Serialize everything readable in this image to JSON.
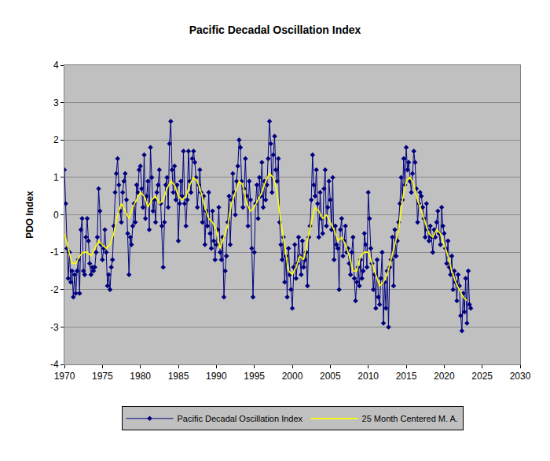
{
  "chart_data": {
    "type": "line",
    "title": "Pacific Decadal Oscillation Index",
    "y_label": "PDO Index",
    "xlim": [
      1970,
      2030
    ],
    "xticks": [
      1970,
      1975,
      1980,
      1985,
      1990,
      1995,
      2000,
      2005,
      2010,
      2015,
      2020,
      2025,
      2030
    ],
    "ylim": [
      -4,
      4
    ],
    "yticks": [
      -4,
      -3,
      -2,
      -1,
      0,
      1,
      2,
      3,
      4
    ],
    "grid": true,
    "legend": "bottom",
    "series": [
      {
        "name": "Pacific Decadal Oscillation Index",
        "color": "#000080",
        "marker": "diamond",
        "line_style": "solid",
        "x": [
          1970,
          1970.17,
          1970.33,
          1970.5,
          1970.67,
          1970.83,
          1971,
          1971.17,
          1971.33,
          1971.5,
          1971.67,
          1971.83,
          1972,
          1972.17,
          1972.33,
          1972.5,
          1972.67,
          1972.83,
          1973,
          1973.17,
          1973.33,
          1973.5,
          1973.67,
          1973.83,
          1974,
          1974.17,
          1974.33,
          1974.5,
          1974.67,
          1974.83,
          1975,
          1975.17,
          1975.33,
          1975.5,
          1975.67,
          1975.83,
          1976,
          1976.17,
          1976.33,
          1976.5,
          1976.67,
          1976.83,
          1977,
          1977.17,
          1977.33,
          1977.5,
          1977.67,
          1977.83,
          1978,
          1978.17,
          1978.33,
          1978.5,
          1978.67,
          1978.83,
          1979,
          1979.17,
          1979.33,
          1979.5,
          1979.67,
          1979.83,
          1980,
          1980.17,
          1980.33,
          1980.5,
          1980.67,
          1980.83,
          1981,
          1981.17,
          1981.33,
          1981.5,
          1981.67,
          1981.83,
          1982,
          1982.17,
          1982.33,
          1982.5,
          1982.67,
          1982.83,
          1983,
          1983.17,
          1983.33,
          1983.5,
          1983.67,
          1983.83,
          1984,
          1984.17,
          1984.33,
          1984.5,
          1984.67,
          1984.83,
          1985,
          1985.17,
          1985.33,
          1985.5,
          1985.67,
          1985.83,
          1986,
          1986.17,
          1986.33,
          1986.5,
          1986.67,
          1986.83,
          1987,
          1987.17,
          1987.33,
          1987.5,
          1987.67,
          1987.83,
          1988,
          1988.17,
          1988.33,
          1988.5,
          1988.67,
          1988.83,
          1989,
          1989.17,
          1989.33,
          1989.5,
          1989.67,
          1989.83,
          1990,
          1990.17,
          1990.33,
          1990.5,
          1990.67,
          1990.83,
          1991,
          1991.17,
          1991.33,
          1991.5,
          1991.67,
          1991.83,
          1992,
          1992.17,
          1992.33,
          1992.5,
          1992.67,
          1992.83,
          1993,
          1993.17,
          1993.33,
          1993.5,
          1993.67,
          1993.83,
          1994,
          1994.17,
          1994.33,
          1994.5,
          1994.67,
          1994.83,
          1995,
          1995.17,
          1995.33,
          1995.5,
          1995.67,
          1995.83,
          1996,
          1996.17,
          1996.33,
          1996.5,
          1996.67,
          1996.83,
          1997,
          1997.17,
          1997.33,
          1997.5,
          1997.67,
          1997.83,
          1998,
          1998.17,
          1998.33,
          1998.5,
          1998.67,
          1998.83,
          1999,
          1999.17,
          1999.33,
          1999.5,
          1999.67,
          1999.83,
          2000,
          2000.17,
          2000.33,
          2000.5,
          2000.67,
          2000.83,
          2001,
          2001.17,
          2001.33,
          2001.5,
          2001.67,
          2001.83,
          2002,
          2002.17,
          2002.33,
          2002.5,
          2002.67,
          2002.83,
          2003,
          2003.17,
          2003.33,
          2003.5,
          2003.67,
          2003.83,
          2004,
          2004.17,
          2004.33,
          2004.5,
          2004.67,
          2004.83,
          2005,
          2005.17,
          2005.33,
          2005.5,
          2005.67,
          2005.83,
          2006,
          2006.17,
          2006.33,
          2006.5,
          2006.67,
          2006.83,
          2007,
          2007.17,
          2007.33,
          2007.5,
          2007.67,
          2007.83,
          2008,
          2008.17,
          2008.33,
          2008.5,
          2008.67,
          2008.83,
          2009,
          2009.17,
          2009.33,
          2009.5,
          2009.67,
          2009.83,
          2010,
          2010.17,
          2010.33,
          2010.5,
          2010.67,
          2010.83,
          2011,
          2011.17,
          2011.33,
          2011.5,
          2011.67,
          2011.83,
          2012,
          2012.17,
          2012.33,
          2012.5,
          2012.67,
          2012.83,
          2013,
          2013.17,
          2013.33,
          2013.5,
          2013.67,
          2013.83,
          2014,
          2014.17,
          2014.33,
          2014.5,
          2014.67,
          2014.83,
          2015,
          2015.17,
          2015.33,
          2015.5,
          2015.67,
          2015.83,
          2016,
          2016.17,
          2016.33,
          2016.5,
          2016.67,
          2016.83,
          2017,
          2017.17,
          2017.33,
          2017.5,
          2017.67,
          2017.83,
          2018,
          2018.17,
          2018.33,
          2018.5,
          2018.67,
          2018.83,
          2019,
          2019.17,
          2019.33,
          2019.5,
          2019.67,
          2019.83,
          2020,
          2020.17,
          2020.33,
          2020.5,
          2020.67,
          2020.83,
          2021,
          2021.17,
          2021.33,
          2021.5,
          2021.67,
          2021.83,
          2022,
          2022.17,
          2022.33,
          2022.5,
          2022.67,
          2022.83,
          2023,
          2023.17,
          2023.33,
          2023.5
        ],
        "values": [
          1.2,
          0.3,
          -0.9,
          -1.7,
          -1.0,
          -1.8,
          -1.5,
          -2.2,
          -1.6,
          -2.1,
          -1.5,
          -1.2,
          -2.1,
          -0.4,
          -0.1,
          -1.5,
          -1.6,
          -0.6,
          -0.1,
          -0.7,
          -1.3,
          -1.6,
          -1.4,
          -1.5,
          -1.4,
          -1.0,
          -0.6,
          0.7,
          0.1,
          -0.8,
          -1.2,
          -0.9,
          -0.4,
          -1.0,
          -1.9,
          -1.6,
          -2.0,
          -1.4,
          -1.2,
          -0.3,
          0.6,
          1.1,
          1.5,
          0.8,
          0.1,
          -0.2,
          0.6,
          0.9,
          1.1,
          0.4,
          -0.5,
          -1.6,
          -0.6,
          -0.8,
          -0.3,
          0.3,
          -0.2,
          0.8,
          0.6,
          1.2,
          1.3,
          0.7,
          0.2,
          1.6,
          -0.1,
          0.5,
          0.9,
          -0.4,
          1.8,
          1.0,
          0.1,
          0.4,
          -0.2,
          0.6,
          0.8,
          1.2,
          0.3,
          -0.3,
          -1.4,
          -0.2,
          0.8,
          1.0,
          0.2,
          1.9,
          2.5,
          1.2,
          0.6,
          1.3,
          0.4,
          0.8,
          -0.7,
          0.3,
          0.9,
          0.5,
          1.7,
          0.3,
          -0.3,
          0.4,
          1.7,
          0.9,
          0.6,
          1.5,
          1.7,
          1.4,
          1.0,
          0.2,
          0.8,
          1.2,
          0.6,
          -0.2,
          0.5,
          -0.8,
          0.1,
          -0.3,
          0.6,
          -0.5,
          -0.9,
          0.1,
          -0.7,
          -1.2,
          -0.8,
          -0.4,
          0.2,
          -1.0,
          -1.2,
          -0.6,
          -2.2,
          -1.5,
          -1.1,
          -0.2,
          0.5,
          -0.8,
          0.4,
          1.1,
          0.6,
          0.0,
          0.9,
          1.3,
          2.0,
          1.8,
          0.9,
          0.2,
          0.7,
          1.5,
          0.5,
          -0.3,
          0.9,
          0.4,
          -0.9,
          -2.2,
          -1.0,
          0.3,
          0.8,
          -0.1,
          1.0,
          0.5,
          1.4,
          0.2,
          0.9,
          0.4,
          0.8,
          1.5,
          2.5,
          1.9,
          0.6,
          1.6,
          2.1,
          1.2,
          0.9,
          1.5,
          -0.2,
          -0.8,
          -1.2,
          -0.6,
          -1.8,
          -1.1,
          -2.2,
          -0.9,
          -1.6,
          -2.0,
          -2.5,
          -1.4,
          -0.8,
          -1.7,
          -1.3,
          -0.6,
          -1.1,
          -1.6,
          -0.7,
          -1.4,
          -1.2,
          -1.0,
          -1.9,
          -0.6,
          -0.3,
          0.4,
          1.6,
          0.8,
          0.5,
          1.2,
          0.3,
          -0.6,
          0.6,
          -0.1,
          -0.5,
          0.7,
          1.2,
          -0.3,
          0.2,
          0.9,
          0.4,
          -0.4,
          1.0,
          -1.2,
          -0.3,
          -0.8,
          -0.9,
          -2.0,
          -0.4,
          -0.1,
          -1.1,
          -0.7,
          -0.3,
          -1.0,
          -0.9,
          -1.3,
          -1.6,
          -1.0,
          -0.6,
          -1.7,
          -2.3,
          -1.8,
          -1.4,
          -1.9,
          -1.2,
          -1.7,
          -1.5,
          -0.5,
          -0.8,
          -1.4,
          0.6,
          -0.1,
          -0.9,
          -1.3,
          -2.0,
          -1.6,
          -2.5,
          -1.2,
          -2.2,
          -2.4,
          -1.7,
          -1.0,
          -2.9,
          -1.8,
          -2.5,
          -1.5,
          -3.0,
          -1.4,
          -1.2,
          -0.6,
          -1.9,
          -0.4,
          -1.1,
          -0.7,
          -0.2,
          0.3,
          1.0,
          0.4,
          1.5,
          0.8,
          1.8,
          1.2,
          1.4,
          0.9,
          0.6,
          1.1,
          1.7,
          1.4,
          0.7,
          -0.2,
          0.3,
          0.6,
          0.5,
          0.2,
          -0.1,
          -0.6,
          0.3,
          -0.4,
          -0.7,
          -0.3,
          -0.6,
          -1.0,
          -0.4,
          -0.6,
          -0.2,
          0.1,
          -0.5,
          -0.8,
          0.2,
          -0.3,
          -0.5,
          -0.9,
          -1.3,
          -0.7,
          -1.4,
          -1.6,
          -1.1,
          -2.0,
          -1.5,
          -1.8,
          -2.3,
          -1.6,
          -1.9,
          -2.7,
          -3.1,
          -2.1,
          -2.6,
          -1.7,
          -2.9,
          -1.5,
          -2.4,
          -2.5
        ]
      },
      {
        "name": "25 Month Centered M. A.",
        "color": "#ffff00",
        "marker": "none",
        "line_style": "solid",
        "x": [
          1970,
          1970.5,
          1971,
          1971.5,
          1972,
          1972.5,
          1973,
          1973.5,
          1974,
          1974.5,
          1975,
          1975.5,
          1976,
          1976.5,
          1977,
          1977.5,
          1978,
          1978.5,
          1979,
          1979.5,
          1980,
          1980.5,
          1981,
          1981.5,
          1982,
          1982.5,
          1983,
          1983.5,
          1984,
          1984.5,
          1985,
          1985.5,
          1986,
          1986.5,
          1987,
          1987.5,
          1988,
          1988.5,
          1989,
          1989.5,
          1990,
          1990.5,
          1991,
          1991.5,
          1992,
          1992.5,
          1993,
          1993.5,
          1994,
          1994.5,
          1995,
          1995.5,
          1996,
          1996.5,
          1997,
          1997.5,
          1998,
          1998.5,
          1999,
          1999.5,
          2000,
          2000.5,
          2001,
          2001.5,
          2002,
          2002.5,
          2003,
          2003.5,
          2004,
          2004.5,
          2005,
          2005.5,
          2006,
          2006.5,
          2007,
          2007.5,
          2008,
          2008.5,
          2009,
          2009.5,
          2010,
          2010.5,
          2011,
          2011.5,
          2012,
          2012.5,
          2013,
          2013.5,
          2014,
          2014.5,
          2015,
          2015.5,
          2016,
          2016.5,
          2017,
          2017.5,
          2018,
          2018.5,
          2019,
          2019.5,
          2020,
          2020.5,
          2021,
          2021.5,
          2022,
          2022.5,
          2023
        ],
        "values": [
          -0.5,
          -0.9,
          -1.3,
          -1.3,
          -1.1,
          -1.0,
          -1.0,
          -1.1,
          -0.9,
          -0.7,
          -0.8,
          -0.9,
          -0.8,
          -0.5,
          0.0,
          0.3,
          0.1,
          -0.1,
          0.2,
          0.4,
          0.6,
          0.5,
          0.2,
          0.4,
          0.5,
          0.3,
          0.4,
          0.7,
          0.9,
          0.8,
          0.5,
          0.4,
          0.5,
          0.8,
          1.0,
          0.9,
          0.6,
          0.2,
          -0.1,
          -0.2,
          -0.4,
          -0.9,
          -0.6,
          -0.3,
          0.3,
          0.6,
          0.9,
          0.8,
          0.3,
          0.1,
          0.2,
          0.4,
          0.6,
          0.9,
          1.1,
          1.0,
          0.6,
          -0.2,
          -0.9,
          -1.5,
          -1.6,
          -1.4,
          -1.1,
          -1.2,
          -0.7,
          -0.2,
          0.2,
          0.1,
          -0.1,
          0.0,
          -0.2,
          -0.4,
          -0.7,
          -0.6,
          -0.8,
          -1.1,
          -1.5,
          -1.5,
          -1.1,
          -1.0,
          -1.0,
          -1.3,
          -1.6,
          -1.9,
          -1.8,
          -1.6,
          -1.2,
          -0.8,
          -0.4,
          0.4,
          0.9,
          1.0,
          0.8,
          0.4,
          0.1,
          -0.2,
          -0.5,
          -0.6,
          -0.4,
          -0.5,
          -0.8,
          -1.1,
          -1.5,
          -1.8,
          -2.0,
          -2.2,
          -2.3
        ]
      }
    ]
  }
}
